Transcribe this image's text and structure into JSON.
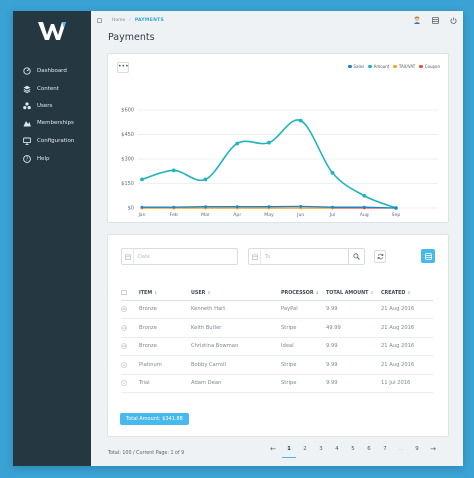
{
  "sidebar": {
    "items": [
      {
        "label": "Dashboard",
        "icon": "dashboard-icon"
      },
      {
        "label": "Content",
        "icon": "layers-icon"
      },
      {
        "label": "Users",
        "icon": "users-icon"
      },
      {
        "label": "Memberships",
        "icon": "memberships-icon"
      },
      {
        "label": "Configuration",
        "icon": "monitor-icon"
      },
      {
        "label": "Help",
        "icon": "help-icon"
      }
    ]
  },
  "header": {
    "breadcrumb_home": "Home",
    "breadcrumb_sep": "/",
    "breadcrumb_current": "PAYMENTS",
    "page_title": "Payments"
  },
  "chart_data": {
    "type": "line",
    "categories": [
      "Jan",
      "Feb",
      "Mar",
      "Apr",
      "May",
      "Jun",
      "Jul",
      "Aug",
      "Sep"
    ],
    "y_ticks": [
      "$600",
      "$450",
      "$300",
      "$150",
      "$0"
    ],
    "ylim": [
      0,
      600
    ],
    "grid": true,
    "legend_position": "top-right",
    "series": [
      {
        "name": "Sales",
        "color": "#1e84c6",
        "values": [
          5,
          5,
          8,
          8,
          8,
          10,
          5,
          5,
          0
        ]
      },
      {
        "name": "Amount",
        "color": "#1fb5ba",
        "values": [
          175,
          230,
          175,
          395,
          400,
          535,
          215,
          75,
          0
        ]
      },
      {
        "name": "TAX/VAT",
        "color": "#f5a623",
        "values": [
          0,
          0,
          0,
          0,
          0,
          0,
          0,
          null,
          null
        ]
      },
      {
        "name": "Coupon",
        "color": "#e74c3c",
        "values": [
          0,
          0,
          0,
          0,
          0,
          0,
          0,
          0,
          0
        ]
      }
    ]
  },
  "filters": {
    "date_from_placeholder": "Date",
    "date_to_placeholder": "To"
  },
  "table": {
    "headers": [
      "ITEM",
      "USER",
      "PROCESSOR",
      "TOTAL AMOUNT",
      "CREATED"
    ],
    "rows": [
      {
        "num": "15",
        "item": "Bronze",
        "user": "Kenneth Hart",
        "processor": "PayPal",
        "amount": "9.99",
        "created": "21 Aug 2016"
      },
      {
        "num": "14",
        "item": "Bronze",
        "user": "Keith Butler",
        "processor": "Stripe",
        "amount": "49.99",
        "created": "21 Aug 2016"
      },
      {
        "num": "13",
        "item": "Bronze",
        "user": "Christina Bowman",
        "processor": "Ideal",
        "amount": "9.99",
        "created": "21 Aug 2016"
      },
      {
        "num": "4",
        "item": "Platinum",
        "user": "Bobby Carroll",
        "processor": "Stripe",
        "amount": "9.99",
        "created": "21 Aug 2016"
      },
      {
        "num": "1",
        "item": "Trial",
        "user": "Adam Dean",
        "processor": "Stripe",
        "amount": "9.99",
        "created": "11 Jul 2016"
      }
    ],
    "total_label": "Total Amount: $341.88"
  },
  "footer": {
    "info": "Total: 100 / Current Page: 1 of 9"
  },
  "pagination": {
    "prev": "←",
    "next": "→",
    "pages": [
      "1",
      "2",
      "3",
      "4",
      "5",
      "6",
      "7",
      "...",
      "9"
    ]
  }
}
